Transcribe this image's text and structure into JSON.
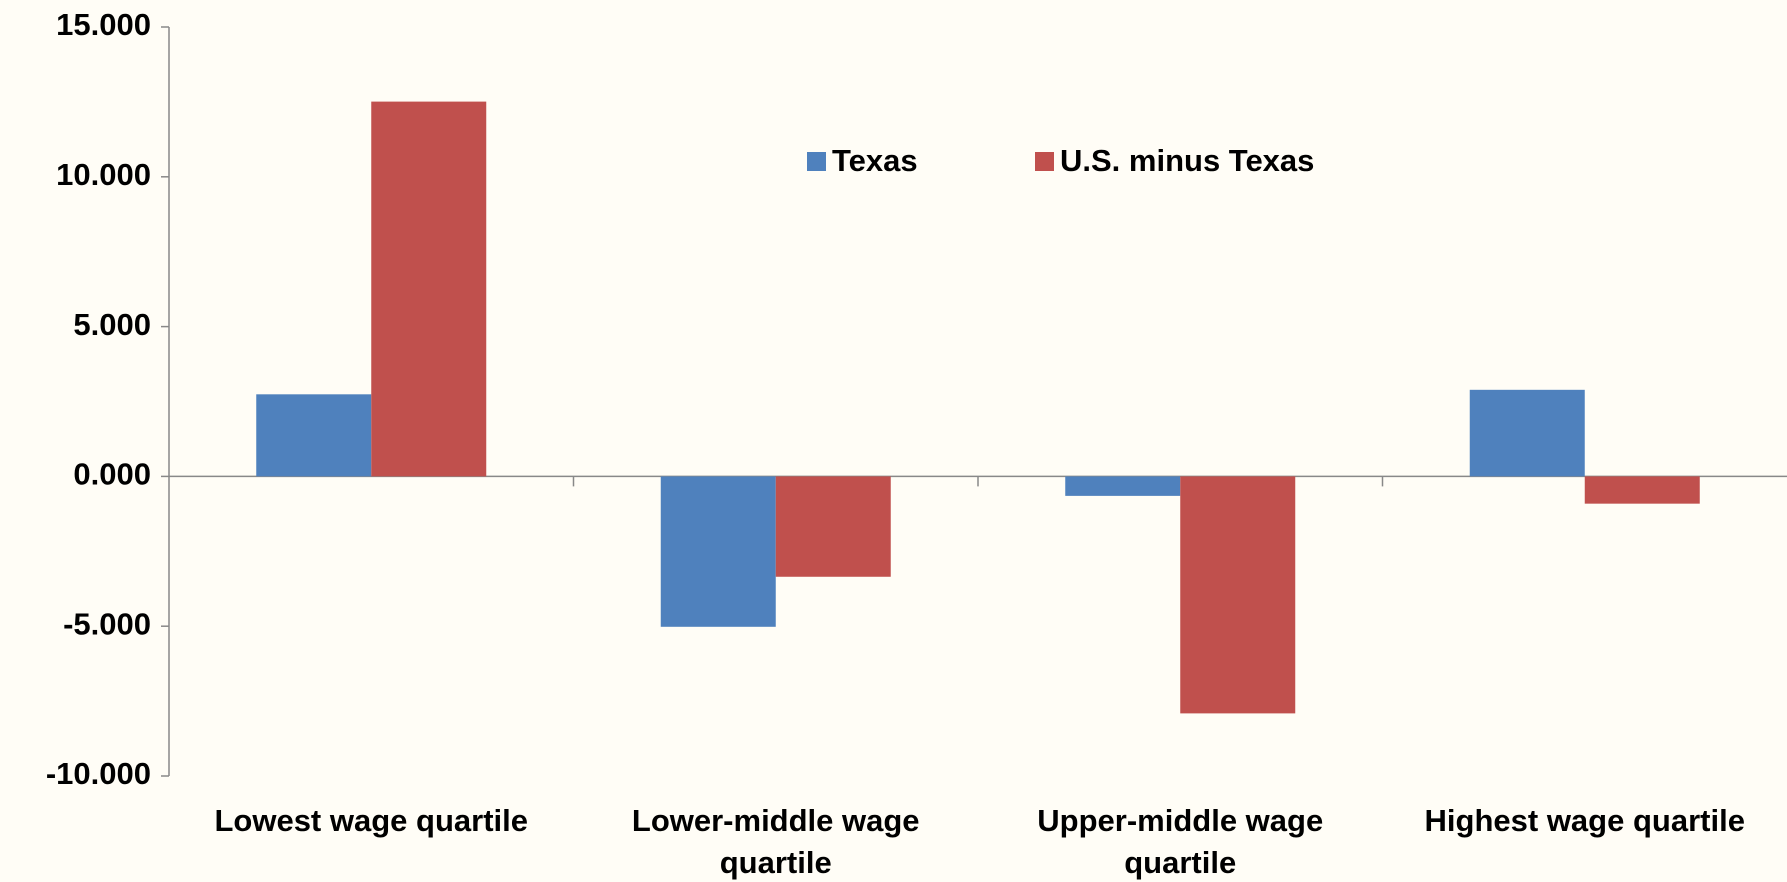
{
  "chart_data": {
    "type": "bar",
    "categories": [
      "Lowest wage quartile",
      "Lower-middle wage quartile",
      "Upper-middle wage quartile",
      "Highest wage quartile"
    ],
    "series": [
      {
        "name": "Texas",
        "color": "#4f81bd",
        "values": [
          2.74,
          -5.02,
          -0.65,
          2.89
        ]
      },
      {
        "name": "U.S. minus Texas",
        "color": "#c0504d",
        "values": [
          12.51,
          -3.35,
          -7.91,
          -0.91
        ]
      }
    ],
    "ylim": [
      -10,
      15
    ],
    "yticks": [
      {
        "value": -10,
        "label": "-10.000"
      },
      {
        "value": -5,
        "label": "-5.000"
      },
      {
        "value": 0,
        "label": "0.000"
      },
      {
        "value": 5,
        "label": "5.000"
      },
      {
        "value": 10,
        "label": "10.000"
      },
      {
        "value": 15,
        "label": "15.000"
      }
    ],
    "grid": false,
    "legend": "top"
  }
}
